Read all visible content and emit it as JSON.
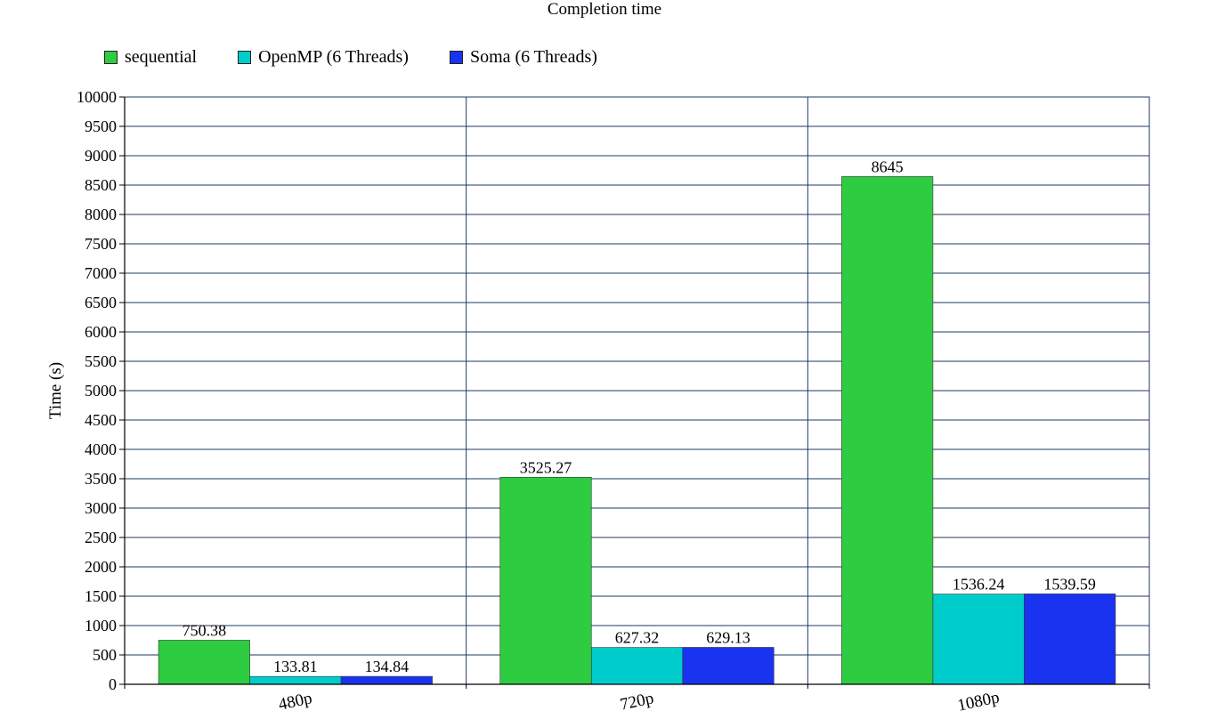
{
  "chart_data": {
    "type": "bar",
    "title": "Completion time",
    "ylabel": "Time (s)",
    "xlabel": "",
    "categories": [
      "480p",
      "720p",
      "1080p"
    ],
    "series": [
      {
        "name": "sequential",
        "color": "#2ecc40",
        "values": [
          750.38,
          3525.27,
          8645
        ],
        "labels": [
          "750.38",
          "3525.27",
          "8645"
        ]
      },
      {
        "name": "OpenMP (6 Threads)",
        "color": "#00cccc",
        "values": [
          133.81,
          627.32,
          1536.24
        ],
        "labels": [
          "133.81",
          "627.32",
          "1536.24"
        ]
      },
      {
        "name": "Soma (6 Threads)",
        "color": "#1a33f0",
        "values": [
          134.84,
          629.13,
          1539.59
        ],
        "labels": [
          "134.84",
          "629.13",
          "1539.59"
        ]
      }
    ],
    "ylim": [
      0,
      10000
    ],
    "ytick_step": 500,
    "grid": true,
    "legend_position": "top-left"
  }
}
